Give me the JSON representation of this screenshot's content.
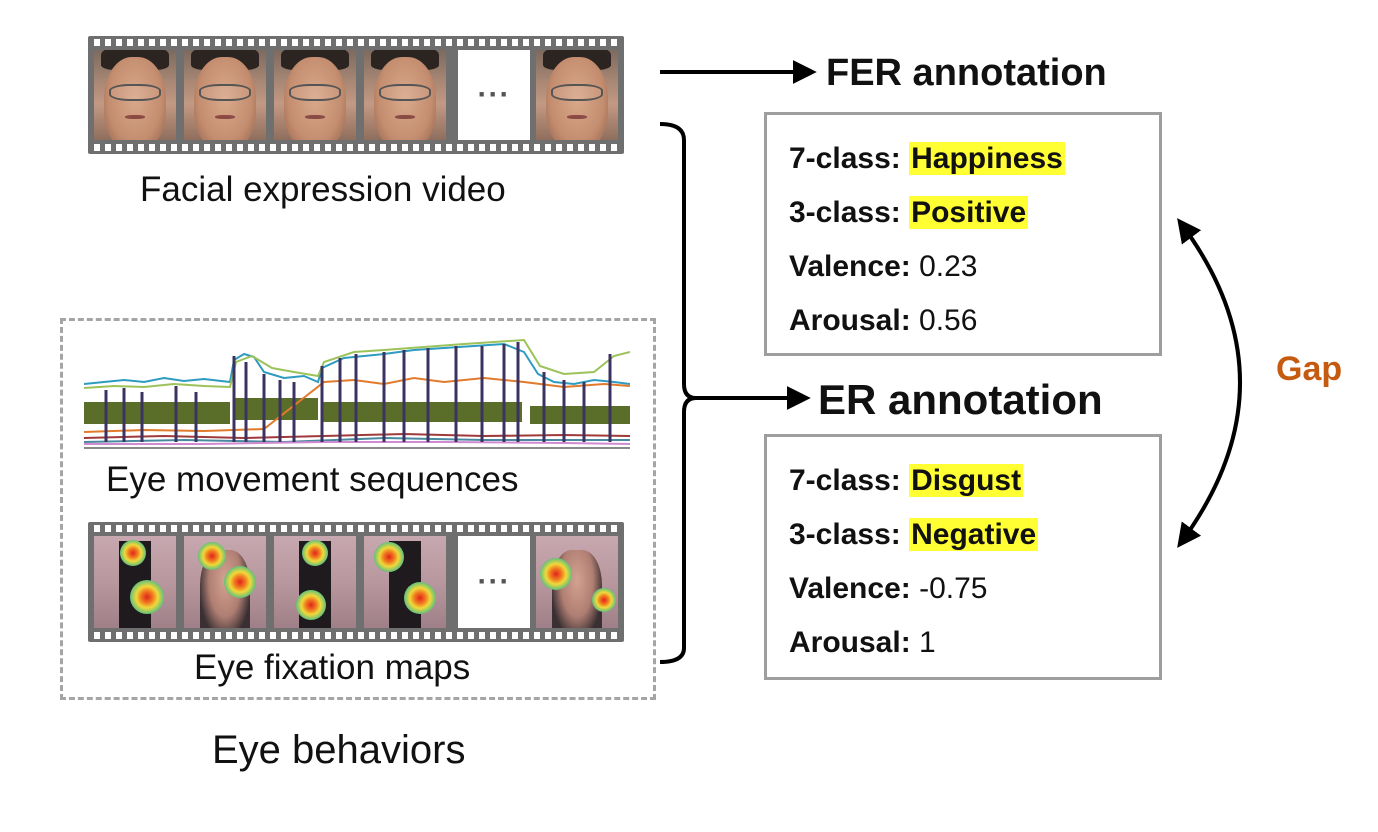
{
  "inputs": {
    "video_caption": "Facial expression video",
    "eye_seq_caption": "Eye movement sequences",
    "fixation_caption": "Eye fixation maps",
    "group_caption": "Eye behaviors",
    "ellipsis": "···"
  },
  "fer": {
    "title": "FER annotation",
    "seven_class_key": "7-class:",
    "seven_class_value": "Happiness",
    "three_class_key": "3-class:",
    "three_class_value": "Positive",
    "valence_key": "Valence:",
    "valence_value": "0.23",
    "arousal_key": "Arousal:",
    "arousal_value": "0.56"
  },
  "er": {
    "title": "ER annotation",
    "seven_class_key": "7-class:",
    "seven_class_value": "Disgust",
    "three_class_key": "3-class:",
    "three_class_value": "Negative",
    "valence_key": "Valence:",
    "valence_value": "-0.75",
    "arousal_key": "Arousal:",
    "arousal_value": "1"
  },
  "gap_label": "Gap",
  "colors": {
    "highlight": "#ffff33",
    "gap": "#c55a11",
    "box_border": "#9e9e9e",
    "film": "#6f6f6f"
  }
}
